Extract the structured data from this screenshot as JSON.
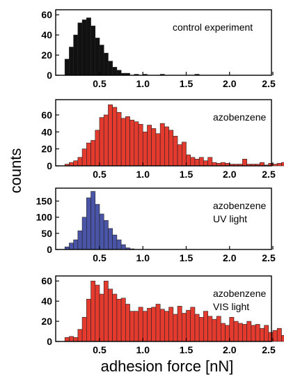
{
  "figure": {
    "ylabel": "counts",
    "xlabel": "adhesion force [nN]",
    "colors": {
      "black": "#111111",
      "red": "#e53a2e",
      "blue": "#4a55a8",
      "edge": "#222222"
    }
  },
  "chart_data": [
    {
      "type": "bar",
      "annotation": [
        "control experiment"
      ],
      "color": "black",
      "bin_width": 0.05,
      "bin_start": 0.1,
      "xlim": [
        0,
        2.5
      ],
      "ylim": [
        0,
        65
      ],
      "yticks": [
        0,
        20,
        40,
        60
      ],
      "xticks": [
        "0.5",
        "1.0",
        "1.5",
        "2.0",
        "2.5"
      ],
      "values": [
        16,
        28,
        40,
        52,
        55,
        57,
        49,
        37,
        30,
        22,
        14,
        8,
        5,
        2,
        2,
        0,
        1,
        0,
        1,
        0,
        0,
        0,
        1,
        0,
        0,
        0,
        0,
        0,
        0,
        0,
        1
      ]
    },
    {
      "type": "bar",
      "annotation": [
        "azobenzene"
      ],
      "color": "red",
      "bin_width": 0.05,
      "bin_start": 0.1,
      "xlim": [
        0,
        2.5
      ],
      "ylim": [
        0,
        78
      ],
      "yticks": [
        0,
        20,
        40,
        60
      ],
      "xticks": [
        "0.5",
        "1.0",
        "1.5",
        "2.0",
        "2.5"
      ],
      "values": [
        2,
        4,
        6,
        10,
        20,
        27,
        30,
        42,
        57,
        60,
        72,
        69,
        63,
        56,
        58,
        54,
        52,
        49,
        40,
        48,
        44,
        38,
        50,
        46,
        42,
        35,
        25,
        28,
        13,
        10,
        8,
        10,
        6,
        10,
        4,
        3,
        4,
        3,
        2,
        2,
        2,
        8,
        2,
        2,
        2,
        4,
        1,
        3,
        2,
        3,
        4,
        4,
        6
      ]
    },
    {
      "type": "bar",
      "annotation": [
        "azobenzene",
        "UV light"
      ],
      "color": "blue",
      "bin_width": 0.05,
      "bin_start": 0.1,
      "xlim": [
        0,
        2.5
      ],
      "ylim": [
        0,
        190
      ],
      "yticks": [
        0,
        50,
        100,
        150
      ],
      "xticks": [
        "0.5",
        "1.0",
        "1.5",
        "2.0",
        "2.5"
      ],
      "values": [
        8,
        20,
        30,
        58,
        100,
        160,
        180,
        140,
        110,
        90,
        65,
        45,
        30,
        15,
        5,
        2
      ]
    },
    {
      "type": "bar",
      "annotation": [
        "azobenzene",
        "VIS light"
      ],
      "color": "red",
      "bin_width": 0.05,
      "bin_start": 0.1,
      "xlim": [
        0,
        2.5
      ],
      "ylim": [
        0,
        65
      ],
      "yticks": [
        0,
        20,
        40,
        60
      ],
      "xticks": [
        "0.5",
        "1.0",
        "1.5",
        "2.0",
        "2.5"
      ],
      "values": [
        4,
        5,
        4,
        12,
        24,
        42,
        60,
        56,
        47,
        60,
        52,
        47,
        42,
        43,
        37,
        30,
        30,
        34,
        30,
        33,
        34,
        37,
        32,
        30,
        34,
        27,
        35,
        28,
        31,
        34,
        27,
        24,
        30,
        25,
        22,
        25,
        18,
        16,
        24,
        20,
        18,
        17,
        20,
        16,
        17,
        13,
        16,
        9,
        11,
        13,
        6,
        4
      ]
    }
  ]
}
